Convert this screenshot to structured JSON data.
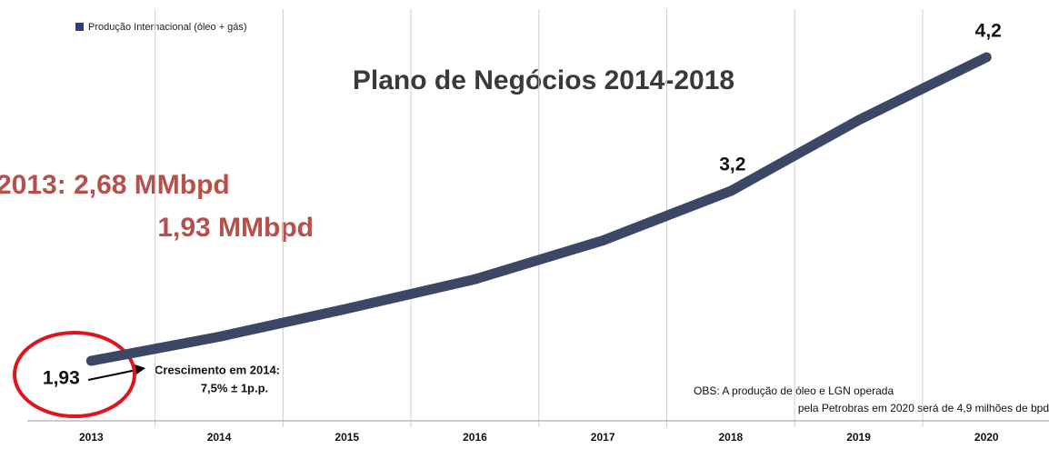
{
  "chart_data": {
    "type": "line",
    "title": "Plano de Negócios 2014-2018",
    "categories": [
      "2013",
      "2014",
      "2015",
      "2016",
      "2017",
      "2018",
      "2019",
      "2020"
    ],
    "series": [
      {
        "name": "Produção Internacional (óleo + gás)",
        "color": "#3b4865",
        "legend_color": "#2e3a8c",
        "values": [
          1.93,
          2.11,
          2.32,
          2.54,
          2.83,
          3.2,
          3.73,
          4.2
        ],
        "value_labels": [
          "1,93",
          null,
          null,
          null,
          null,
          "3,2",
          null,
          "4,2"
        ]
      }
    ],
    "annotations": [
      "2013:  2,68 MMbpd",
      "1,93 MMbpd",
      "Crescimento em 2014:",
      "7,5% ± 1p.p.",
      "OBS: A produção de óleo e LGN operada",
      "pela Petrobras em 2020 será de 4,9 milhões de bpd"
    ],
    "grid": true
  }
}
